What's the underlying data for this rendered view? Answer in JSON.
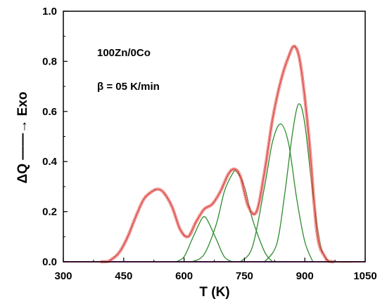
{
  "chart_data": {
    "type": "line",
    "title": "",
    "xlabel": "T (K)",
    "ylabel": "ΔQ ——→ Exo",
    "xlim": [
      300,
      1050
    ],
    "ylim": [
      0.0,
      1.0
    ],
    "x_ticks": [
      "300",
      "450",
      "600",
      "750",
      "900",
      "1050"
    ],
    "x_tick_values": [
      300,
      450,
      600,
      750,
      900,
      1050
    ],
    "y_ticks": [
      "0.0",
      "0.2",
      "0.4",
      "0.6",
      "0.8",
      "1.0"
    ],
    "y_tick_values": [
      0.0,
      0.2,
      0.4,
      0.6,
      0.8,
      1.0
    ],
    "grid": false,
    "annotations": [
      "100Zn/0Co",
      "β = 05 K/min"
    ],
    "series": [
      {
        "role": "measured",
        "style": "open-circle-markers",
        "color": "#e8605a",
        "x": [
          300,
          400,
          420,
          440,
          460,
          480,
          500,
          520,
          535,
          550,
          570,
          590,
          610,
          630,
          650,
          670,
          690,
          710,
          725,
          740,
          760,
          780,
          800,
          820,
          840,
          860,
          875,
          890,
          910,
          930,
          950,
          970,
          1050
        ],
        "y": [
          0.0,
          0.0,
          0.01,
          0.04,
          0.1,
          0.18,
          0.25,
          0.28,
          0.29,
          0.275,
          0.22,
          0.13,
          0.1,
          0.16,
          0.21,
          0.23,
          0.28,
          0.35,
          0.37,
          0.34,
          0.22,
          0.2,
          0.36,
          0.57,
          0.72,
          0.82,
          0.86,
          0.78,
          0.5,
          0.12,
          0.02,
          0.0,
          0.0
        ]
      },
      {
        "role": "fit-sum",
        "style": "line",
        "color": "#cc2222",
        "x": [
          300,
          400,
          420,
          440,
          460,
          480,
          500,
          520,
          535,
          550,
          570,
          590,
          610,
          630,
          650,
          670,
          690,
          710,
          725,
          740,
          760,
          780,
          800,
          820,
          840,
          860,
          875,
          890,
          910,
          930,
          950,
          970,
          1050
        ],
        "y": [
          0.0,
          0.0,
          0.01,
          0.04,
          0.1,
          0.18,
          0.25,
          0.28,
          0.29,
          0.275,
          0.22,
          0.13,
          0.1,
          0.16,
          0.21,
          0.23,
          0.28,
          0.35,
          0.37,
          0.34,
          0.22,
          0.2,
          0.36,
          0.57,
          0.72,
          0.82,
          0.86,
          0.78,
          0.5,
          0.12,
          0.02,
          0.0,
          0.0
        ]
      },
      {
        "role": "fit-peak",
        "style": "line",
        "color": "#2e8b2e",
        "x": [
          580,
          600,
          620,
          640,
          650,
          660,
          680,
          700,
          720
        ],
        "y": [
          0.0,
          0.02,
          0.09,
          0.16,
          0.18,
          0.16,
          0.09,
          0.02,
          0.0
        ]
      },
      {
        "role": "fit-peak",
        "style": "line",
        "color": "#2e8b2e",
        "x": [
          620,
          650,
          680,
          700,
          720,
          730,
          750,
          770,
          800,
          820
        ],
        "y": [
          0.0,
          0.03,
          0.15,
          0.28,
          0.35,
          0.36,
          0.3,
          0.17,
          0.04,
          0.0
        ]
      },
      {
        "role": "fit-peak",
        "style": "line",
        "color": "#2e8b2e",
        "x": [
          740,
          770,
          800,
          820,
          840,
          860,
          880,
          900,
          920
        ],
        "y": [
          0.0,
          0.06,
          0.3,
          0.48,
          0.55,
          0.47,
          0.25,
          0.08,
          0.0
        ]
      },
      {
        "role": "fit-peak",
        "style": "line",
        "color": "#2e8b2e",
        "x": [
          800,
          830,
          850,
          870,
          885,
          900,
          920,
          940,
          960
        ],
        "y": [
          0.0,
          0.07,
          0.27,
          0.52,
          0.63,
          0.55,
          0.27,
          0.06,
          0.0
        ]
      },
      {
        "role": "baseline",
        "style": "line",
        "color": "#e040e0",
        "x": [
          300,
          1050
        ],
        "y": [
          0.0,
          0.0
        ]
      }
    ]
  }
}
